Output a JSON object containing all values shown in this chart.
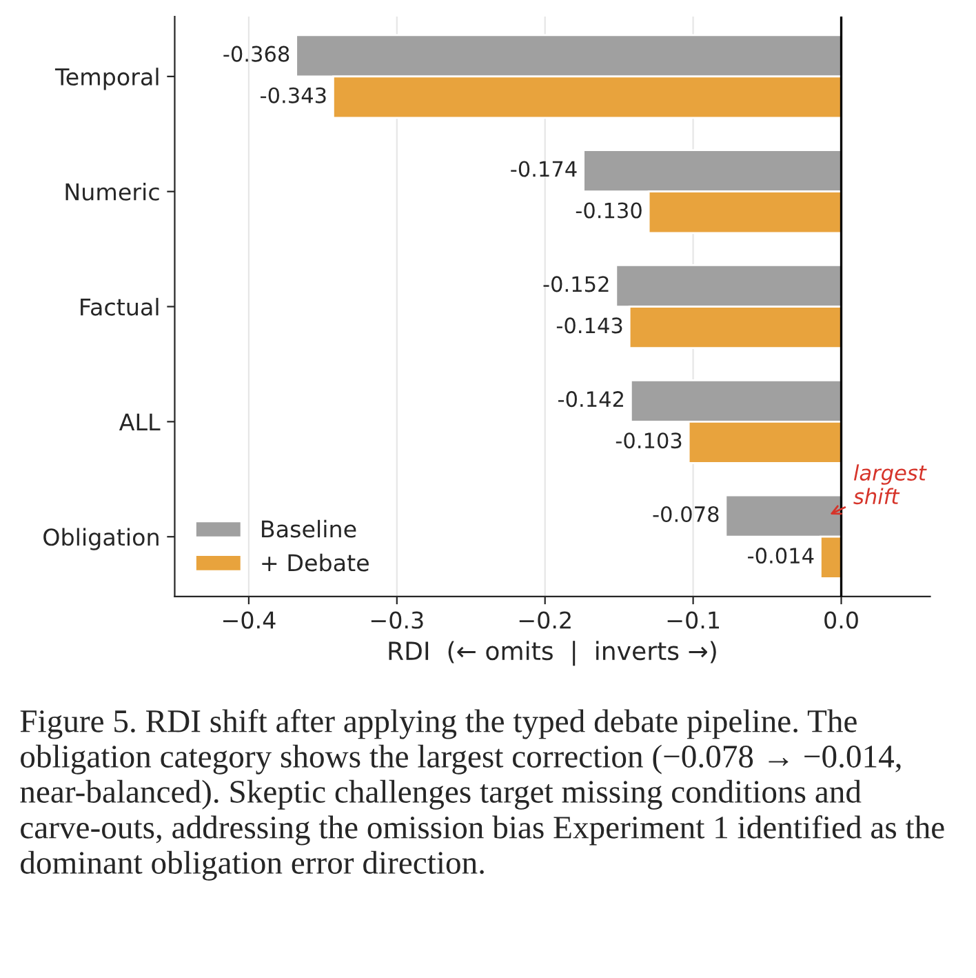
{
  "chart_data": {
    "type": "bar",
    "orientation": "horizontal",
    "categories": [
      "Temporal",
      "Numeric",
      "Factual",
      "ALL",
      "Obligation"
    ],
    "series": [
      {
        "name": "Baseline",
        "color": "#a0a0a0",
        "values": [
          -0.368,
          -0.174,
          -0.152,
          -0.142,
          -0.078
        ],
        "value_labels": [
          "-0.368",
          "-0.174",
          "-0.152",
          "-0.142",
          "-0.078"
        ]
      },
      {
        "name": "+ Debate",
        "color": "#e8a33d",
        "values": [
          -0.343,
          -0.13,
          -0.143,
          -0.103,
          -0.014
        ],
        "value_labels": [
          "-0.343",
          "-0.130",
          "-0.143",
          "-0.103",
          "-0.014"
        ]
      }
    ],
    "xlim": [
      -0.45,
      0.06
    ],
    "xticks": [
      {
        "value": -0.4,
        "label": "−0.4"
      },
      {
        "value": -0.3,
        "label": "−0.3"
      },
      {
        "value": -0.2,
        "label": "−0.2"
      },
      {
        "value": -0.1,
        "label": "−0.1"
      },
      {
        "value": 0.0,
        "label": "0.0"
      }
    ],
    "xlabel": "RDI  (← omits  |  inverts →)",
    "ref_lines": [
      {
        "axis": "x",
        "value": 0,
        "color": "#000000"
      }
    ],
    "grid": "x",
    "legend": "bottom left",
    "annotations": [
      {
        "text": "largest\nshift",
        "x": -0.01,
        "y": "Obligation"
      },
      "Figure 5. RDI shift after applying the typed debate pipeline. The obligation category shows the largest correction (−0.078 → −0.014, near-balanced). Skeptic challenges target missing conditions and carve-outs, addressing the omission bias Experiment 1 identified as the dominant obligation error direction."
    ]
  }
}
